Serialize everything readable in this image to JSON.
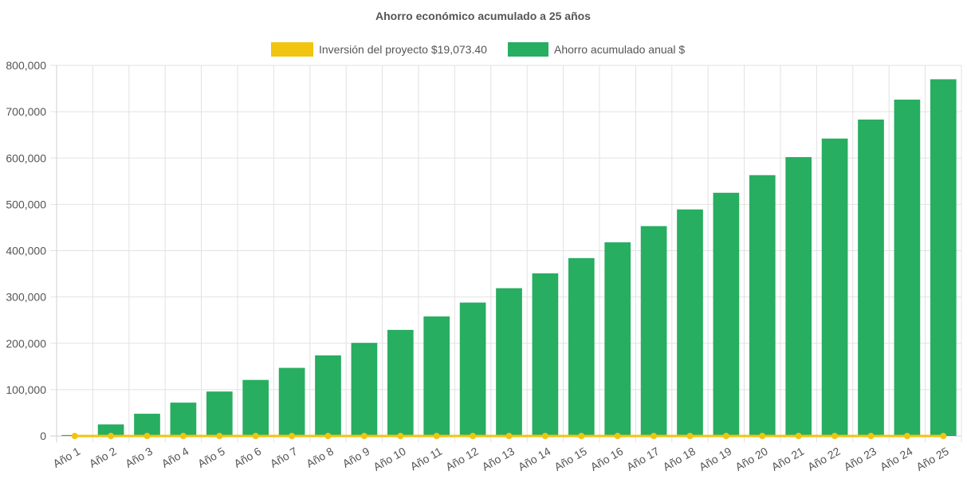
{
  "chart_data": {
    "type": "bar",
    "title": "Ahorro económico acumulado a 25 años",
    "xlabel": "",
    "ylabel": "",
    "ylim": [
      0,
      800000
    ],
    "y_ticks": [
      "0",
      "100,000",
      "200,000",
      "300,000",
      "400,000",
      "500,000",
      "600,000",
      "700,000",
      "800,000"
    ],
    "y_tick_values": [
      0,
      100000,
      200000,
      300000,
      400000,
      500000,
      600000,
      700000,
      800000
    ],
    "categories": [
      "Año 1",
      "Año 2",
      "Año 3",
      "Año 4",
      "Año 5",
      "Año 6",
      "Año 7",
      "Año 8",
      "Año 9",
      "Año 10",
      "Año 11",
      "Año 12",
      "Año 13",
      "Año 14",
      "Año 15",
      "Año 16",
      "Año 17",
      "Año 18",
      "Año 19",
      "Año 20",
      "Año 21",
      "Año 22",
      "Año 23",
      "Año 24",
      "Año 25"
    ],
    "grid": true,
    "legend_position": "top",
    "series": [
      {
        "name": "Inversión del proyecto $19,073.40",
        "type": "line",
        "color": "#f1c40f",
        "values": [
          0,
          0,
          0,
          0,
          0,
          0,
          0,
          0,
          0,
          0,
          0,
          0,
          0,
          0,
          0,
          0,
          0,
          0,
          0,
          0,
          0,
          0,
          0,
          0,
          0
        ]
      },
      {
        "name": "Ahorro acumulado anual $",
        "type": "bar",
        "color": "#27ae60",
        "values": [
          2000,
          25000,
          48000,
          72000,
          96000,
          121000,
          147000,
          174000,
          201000,
          229000,
          258000,
          288000,
          319000,
          351000,
          384000,
          418000,
          453000,
          489000,
          525000,
          563000,
          602000,
          642000,
          683000,
          726000,
          770000
        ]
      }
    ]
  }
}
